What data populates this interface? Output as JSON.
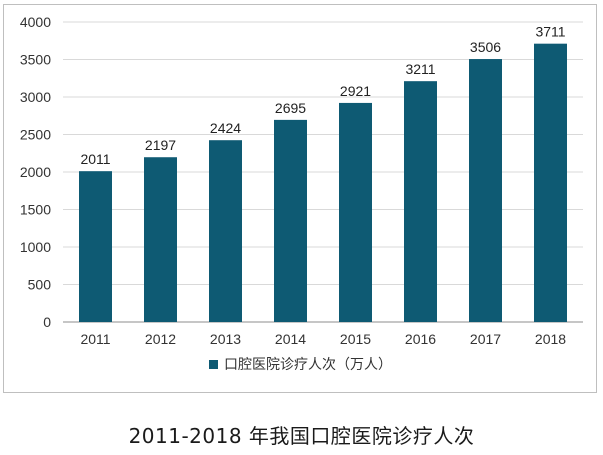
{
  "chart_data": {
    "type": "bar",
    "categories": [
      "2011",
      "2012",
      "2013",
      "2014",
      "2015",
      "2016",
      "2017",
      "2018"
    ],
    "values": [
      2011,
      2197,
      2424,
      2695,
      2921,
      3211,
      3506,
      3711
    ],
    "series": [
      {
        "name": "口腔医院诊疗人次（万人）",
        "values": [
          2011,
          2197,
          2424,
          2695,
          2921,
          3211,
          3506,
          3711
        ]
      }
    ],
    "yticks": [
      "0",
      "500",
      "1000",
      "1500",
      "2000",
      "2500",
      "3000",
      "3500",
      "4000"
    ],
    "ylim": [
      0,
      4000
    ],
    "grid": true,
    "legend_position": "bottom",
    "bar_color": "#0e5a73",
    "title": "",
    "xlabel": "",
    "ylabel": ""
  },
  "caption": "2011-2018  年我国口腔医院诊疗人次"
}
